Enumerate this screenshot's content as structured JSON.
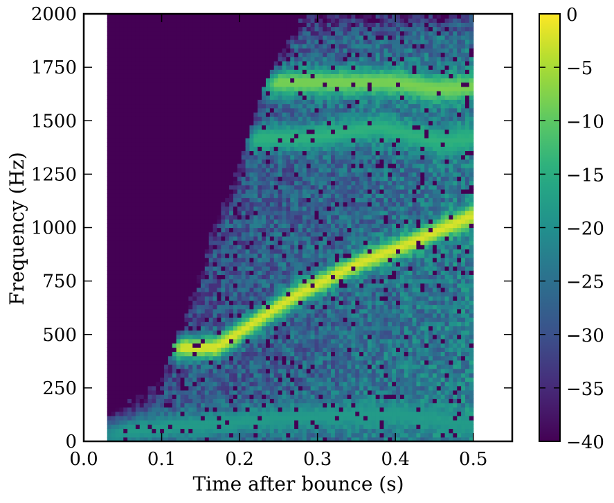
{
  "chart_data": {
    "type": "heatmap",
    "title": "",
    "xlabel": "Time after bounce (s)",
    "ylabel": "Frequency (Hz)",
    "xlim": [
      0.0,
      0.55
    ],
    "ylim": [
      0,
      2000
    ],
    "x_ticks": [
      0.0,
      0.1,
      0.2,
      0.3,
      0.4,
      0.5
    ],
    "x_tick_labels": [
      "0.0",
      "0.1",
      "0.2",
      "0.3",
      "0.4",
      "0.5"
    ],
    "y_ticks": [
      0,
      250,
      500,
      750,
      1000,
      1250,
      1500,
      1750,
      2000
    ],
    "y_tick_labels": [
      "0",
      "250",
      "500",
      "750",
      "1000",
      "1250",
      "1500",
      "1750",
      "2000"
    ],
    "data_time_range": [
      0.03,
      0.5
    ],
    "colorbar": {
      "colormap": "viridis",
      "range": [
        -40,
        0
      ],
      "ticks": [
        0,
        -5,
        -10,
        -15,
        -20,
        -25,
        -30,
        -35,
        -40
      ],
      "tick_labels": [
        "0",
        "−5",
        "−10",
        "−15",
        "−20",
        "−25",
        "−30",
        "−35",
        "−40"
      ]
    },
    "features": [
      {
        "type": "ridge",
        "points": [
          [
            0.17,
            440
          ],
          [
            0.27,
            680
          ],
          [
            0.35,
            830
          ],
          [
            0.42,
            930
          ],
          [
            0.5,
            1060
          ]
        ],
        "level": -2
      },
      {
        "type": "band",
        "points": [
          [
            0.28,
            1420
          ],
          [
            0.38,
            1470
          ],
          [
            0.46,
            1400
          ],
          [
            0.5,
            1420
          ]
        ],
        "level": -14
      },
      {
        "type": "band",
        "points": [
          [
            0.4,
            1680
          ],
          [
            0.45,
            1650
          ],
          [
            0.5,
            1660
          ]
        ],
        "level": -8
      },
      {
        "type": "band",
        "points": [
          [
            0.05,
            50
          ],
          [
            0.25,
            110
          ],
          [
            0.4,
            130
          ],
          [
            0.5,
            80
          ]
        ],
        "level": -18
      }
    ],
    "activity_onset": [
      [
        0.03,
        120
      ],
      [
        0.1,
        300
      ],
      [
        0.14,
        700
      ],
      [
        0.17,
        1050
      ],
      [
        0.2,
        1300
      ],
      [
        0.23,
        1650
      ],
      [
        0.26,
        1900
      ],
      [
        0.28,
        2000
      ]
    ],
    "grid": false,
    "legend": "none"
  }
}
